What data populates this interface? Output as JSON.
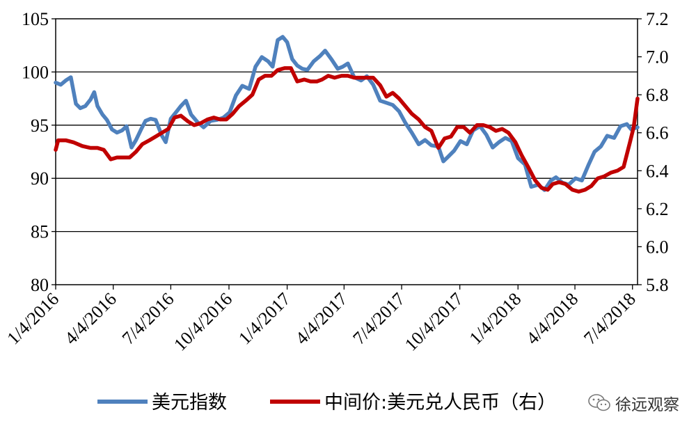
{
  "watermark": {
    "text": "徐远观察",
    "icon": "wechat-icon"
  },
  "chart_data": {
    "type": "line",
    "title": "",
    "xlabel": "",
    "ylabel": "",
    "x_tick_labels": [
      "1/4/2016",
      "4/4/2016",
      "7/4/2016",
      "10/4/2016",
      "1/4/2017",
      "4/4/2017",
      "7/4/2017",
      "10/4/2017",
      "1/4/2018",
      "4/4/2018",
      "7/4/2018"
    ],
    "x_tick_dates": [
      "2016-01-04",
      "2016-04-04",
      "2016-07-04",
      "2016-10-04",
      "2017-01-04",
      "2017-04-04",
      "2017-07-04",
      "2017-10-04",
      "2018-01-04",
      "2018-04-04",
      "2018-07-04"
    ],
    "xlim": [
      "2016-01-04",
      "2018-07-12"
    ],
    "y_left": {
      "ylim": [
        80,
        105
      ],
      "ticks": [
        80,
        85,
        90,
        95,
        100,
        105
      ]
    },
    "y_right": {
      "ylim": [
        5.8,
        7.2
      ],
      "ticks": [
        "5.8",
        "6.0",
        "6.2",
        "6.4",
        "6.6",
        "6.8",
        "7.0",
        "7.2"
      ]
    },
    "grid": "horizontal",
    "legend_position": "bottom",
    "series": [
      {
        "name": "美元指数",
        "axis": "left",
        "color": "#4f81bd",
        "points": [
          [
            "2016-01-04",
            99.0
          ],
          [
            "2016-01-12",
            98.8
          ],
          [
            "2016-01-20",
            99.2
          ],
          [
            "2016-01-28",
            99.5
          ],
          [
            "2016-02-05",
            97.0
          ],
          [
            "2016-02-12",
            96.6
          ],
          [
            "2016-02-20",
            96.8
          ],
          [
            "2016-02-28",
            97.4
          ],
          [
            "2016-03-05",
            98.1
          ],
          [
            "2016-03-10",
            96.8
          ],
          [
            "2016-03-18",
            96.0
          ],
          [
            "2016-03-25",
            95.5
          ],
          [
            "2016-04-02",
            94.6
          ],
          [
            "2016-04-10",
            94.3
          ],
          [
            "2016-04-18",
            94.5
          ],
          [
            "2016-04-25",
            94.9
          ],
          [
            "2016-05-03",
            92.9
          ],
          [
            "2016-05-10",
            93.6
          ],
          [
            "2016-05-18",
            94.6
          ],
          [
            "2016-05-25",
            95.4
          ],
          [
            "2016-06-02",
            95.6
          ],
          [
            "2016-06-10",
            95.5
          ],
          [
            "2016-06-20",
            94.0
          ],
          [
            "2016-06-26",
            93.4
          ],
          [
            "2016-07-04",
            95.6
          ],
          [
            "2016-07-12",
            96.2
          ],
          [
            "2016-07-20",
            96.8
          ],
          [
            "2016-07-28",
            97.3
          ],
          [
            "2016-08-05",
            96.0
          ],
          [
            "2016-08-15",
            95.3
          ],
          [
            "2016-08-25",
            94.8
          ],
          [
            "2016-09-05",
            95.4
          ],
          [
            "2016-09-15",
            95.5
          ],
          [
            "2016-09-25",
            95.7
          ],
          [
            "2016-10-05",
            96.2
          ],
          [
            "2016-10-15",
            97.8
          ],
          [
            "2016-10-25",
            98.7
          ],
          [
            "2016-11-05",
            98.4
          ],
          [
            "2016-11-15",
            100.5
          ],
          [
            "2016-11-25",
            101.4
          ],
          [
            "2016-12-05",
            101.0
          ],
          [
            "2016-12-12",
            100.5
          ],
          [
            "2016-12-20",
            103.0
          ],
          [
            "2016-12-28",
            103.3
          ],
          [
            "2017-01-04",
            102.8
          ],
          [
            "2017-01-12",
            101.2
          ],
          [
            "2017-01-20",
            100.6
          ],
          [
            "2017-01-28",
            100.3
          ],
          [
            "2017-02-05",
            100.2
          ],
          [
            "2017-02-15",
            101.0
          ],
          [
            "2017-02-25",
            101.5
          ],
          [
            "2017-03-05",
            102.0
          ],
          [
            "2017-03-15",
            101.2
          ],
          [
            "2017-03-25",
            100.3
          ],
          [
            "2017-04-02",
            100.5
          ],
          [
            "2017-04-10",
            100.8
          ],
          [
            "2017-04-20",
            99.5
          ],
          [
            "2017-05-01",
            99.2
          ],
          [
            "2017-05-10",
            99.6
          ],
          [
            "2017-05-20",
            98.8
          ],
          [
            "2017-05-31",
            97.3
          ],
          [
            "2017-06-10",
            97.1
          ],
          [
            "2017-06-20",
            96.9
          ],
          [
            "2017-06-30",
            96.3
          ],
          [
            "2017-07-10",
            95.2
          ],
          [
            "2017-07-20",
            94.3
          ],
          [
            "2017-07-31",
            93.2
          ],
          [
            "2017-08-10",
            93.6
          ],
          [
            "2017-08-20",
            93.1
          ],
          [
            "2017-08-31",
            93.0
          ],
          [
            "2017-09-08",
            91.6
          ],
          [
            "2017-09-15",
            92.0
          ],
          [
            "2017-09-25",
            92.6
          ],
          [
            "2017-10-05",
            93.5
          ],
          [
            "2017-10-15",
            93.2
          ],
          [
            "2017-10-25",
            94.5
          ],
          [
            "2017-11-05",
            94.9
          ],
          [
            "2017-11-15",
            94.1
          ],
          [
            "2017-11-25",
            92.9
          ],
          [
            "2017-12-05",
            93.4
          ],
          [
            "2017-12-15",
            93.8
          ],
          [
            "2017-12-25",
            93.5
          ],
          [
            "2018-01-04",
            91.9
          ],
          [
            "2018-01-15",
            91.3
          ],
          [
            "2018-01-25",
            89.2
          ],
          [
            "2018-02-05",
            89.4
          ],
          [
            "2018-02-15",
            88.9
          ],
          [
            "2018-02-25",
            89.8
          ],
          [
            "2018-03-05",
            90.1
          ],
          [
            "2018-03-15",
            89.6
          ],
          [
            "2018-03-25",
            89.4
          ],
          [
            "2018-04-05",
            90.0
          ],
          [
            "2018-04-15",
            89.8
          ],
          [
            "2018-04-25",
            91.2
          ],
          [
            "2018-05-05",
            92.5
          ],
          [
            "2018-05-15",
            93.0
          ],
          [
            "2018-05-25",
            94.0
          ],
          [
            "2018-06-05",
            93.8
          ],
          [
            "2018-06-15",
            94.9
          ],
          [
            "2018-06-25",
            95.1
          ],
          [
            "2018-07-02",
            94.6
          ],
          [
            "2018-07-12",
            94.8
          ]
        ]
      },
      {
        "name": "中间价:美元兑人民币（右）",
        "axis": "right",
        "color": "#c00000",
        "points": [
          [
            "2016-01-04",
            6.51
          ],
          [
            "2016-01-08",
            6.56
          ],
          [
            "2016-01-20",
            6.56
          ],
          [
            "2016-02-01",
            6.55
          ],
          [
            "2016-02-15",
            6.53
          ],
          [
            "2016-02-28",
            6.52
          ],
          [
            "2016-03-10",
            6.52
          ],
          [
            "2016-03-20",
            6.51
          ],
          [
            "2016-03-31",
            6.46
          ],
          [
            "2016-04-10",
            6.47
          ],
          [
            "2016-04-20",
            6.47
          ],
          [
            "2016-04-30",
            6.47
          ],
          [
            "2016-05-10",
            6.5
          ],
          [
            "2016-05-20",
            6.54
          ],
          [
            "2016-05-31",
            6.56
          ],
          [
            "2016-06-10",
            6.58
          ],
          [
            "2016-06-20",
            6.6
          ],
          [
            "2016-06-30",
            6.62
          ],
          [
            "2016-07-10",
            6.68
          ],
          [
            "2016-07-20",
            6.69
          ],
          [
            "2016-07-31",
            6.66
          ],
          [
            "2016-08-10",
            6.64
          ],
          [
            "2016-08-20",
            6.65
          ],
          [
            "2016-08-31",
            6.67
          ],
          [
            "2016-09-10",
            6.68
          ],
          [
            "2016-09-20",
            6.67
          ],
          [
            "2016-09-30",
            6.67
          ],
          [
            "2016-10-10",
            6.7
          ],
          [
            "2016-10-20",
            6.74
          ],
          [
            "2016-10-31",
            6.77
          ],
          [
            "2016-11-10",
            6.8
          ],
          [
            "2016-11-20",
            6.88
          ],
          [
            "2016-11-30",
            6.9
          ],
          [
            "2016-12-10",
            6.9
          ],
          [
            "2016-12-20",
            6.93
          ],
          [
            "2016-12-31",
            6.94
          ],
          [
            "2017-01-10",
            6.94
          ],
          [
            "2017-01-20",
            6.87
          ],
          [
            "2017-01-31",
            6.88
          ],
          [
            "2017-02-10",
            6.87
          ],
          [
            "2017-02-20",
            6.87
          ],
          [
            "2017-02-28",
            6.88
          ],
          [
            "2017-03-10",
            6.9
          ],
          [
            "2017-03-20",
            6.89
          ],
          [
            "2017-03-31",
            6.9
          ],
          [
            "2017-04-10",
            6.9
          ],
          [
            "2017-04-20",
            6.89
          ],
          [
            "2017-04-30",
            6.89
          ],
          [
            "2017-05-10",
            6.89
          ],
          [
            "2017-05-20",
            6.89
          ],
          [
            "2017-05-31",
            6.85
          ],
          [
            "2017-06-10",
            6.79
          ],
          [
            "2017-06-20",
            6.81
          ],
          [
            "2017-06-30",
            6.78
          ],
          [
            "2017-07-10",
            6.74
          ],
          [
            "2017-07-20",
            6.7
          ],
          [
            "2017-07-31",
            6.67
          ],
          [
            "2017-08-10",
            6.63
          ],
          [
            "2017-08-20",
            6.61
          ],
          [
            "2017-08-31",
            6.52
          ],
          [
            "2017-09-10",
            6.57
          ],
          [
            "2017-09-20",
            6.58
          ],
          [
            "2017-09-30",
            6.63
          ],
          [
            "2017-10-10",
            6.63
          ],
          [
            "2017-10-20",
            6.6
          ],
          [
            "2017-10-31",
            6.64
          ],
          [
            "2017-11-10",
            6.64
          ],
          [
            "2017-11-20",
            6.63
          ],
          [
            "2017-11-30",
            6.61
          ],
          [
            "2017-12-10",
            6.62
          ],
          [
            "2017-12-20",
            6.6
          ],
          [
            "2017-12-31",
            6.55
          ],
          [
            "2018-01-10",
            6.48
          ],
          [
            "2018-01-20",
            6.42
          ],
          [
            "2018-01-31",
            6.35
          ],
          [
            "2018-02-10",
            6.31
          ],
          [
            "2018-02-20",
            6.3
          ],
          [
            "2018-02-28",
            6.33
          ],
          [
            "2018-03-10",
            6.34
          ],
          [
            "2018-03-20",
            6.33
          ],
          [
            "2018-03-31",
            6.3
          ],
          [
            "2018-04-10",
            6.29
          ],
          [
            "2018-04-20",
            6.3
          ],
          [
            "2018-04-30",
            6.32
          ],
          [
            "2018-05-10",
            6.36
          ],
          [
            "2018-05-20",
            6.37
          ],
          [
            "2018-05-31",
            6.39
          ],
          [
            "2018-06-10",
            6.4
          ],
          [
            "2018-06-20",
            6.42
          ],
          [
            "2018-06-30",
            6.55
          ],
          [
            "2018-07-06",
            6.63
          ],
          [
            "2018-07-12",
            6.78
          ]
        ]
      }
    ]
  }
}
